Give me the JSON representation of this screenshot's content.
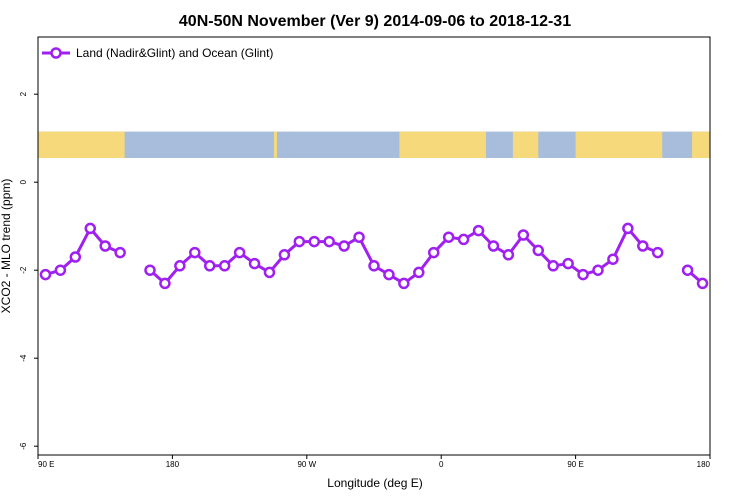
{
  "chart_data": {
    "type": "line",
    "title": "40N-50N November (Ver 9)   2014-09-06 to 2018-12-31",
    "xlabel": "Longitude (deg E)",
    "ylabel": "XCO2 - MLO trend (ppm)",
    "xlim": [
      90,
      450
    ],
    "ylim": [
      -6.2,
      3.3
    ],
    "x_ticks": [
      {
        "value": 90,
        "label": "90 E"
      },
      {
        "value": 180,
        "label": "180"
      },
      {
        "value": 270,
        "label": "90 W"
      },
      {
        "value": 360,
        "label": "0"
      },
      {
        "value": 450,
        "label": "90 E"
      },
      {
        "value": 540,
        "label": "180"
      }
    ],
    "y_ticks": [
      {
        "value": 2,
        "label": "2"
      },
      {
        "value": 0,
        "label": "0"
      },
      {
        "value": -2,
        "label": "-2"
      },
      {
        "value": -4,
        "label": "-4"
      },
      {
        "value": -6,
        "label": "-6"
      }
    ],
    "legend": {
      "position": "top-left",
      "entries": [
        "Land (Nadir&Glint) and Ocean (Glint)"
      ]
    },
    "grid": false,
    "color": "#a020f0",
    "map_strip": {
      "y_top": 1.15,
      "y_bottom": 0.55,
      "land_color": "#f5d97a",
      "ocean_color": "#a8bcdc"
    },
    "series": [
      {
        "name": "Land (Nadir&Glint) and Ocean (Glint)",
        "segments": [
          {
            "x": [
              95,
              105,
              115,
              125,
              135,
              145
            ],
            "y": [
              -2.1,
              -2.0,
              -1.7,
              -1.05,
              -1.45,
              -1.6
            ]
          },
          {
            "x": [
              165,
              175,
              185,
              195,
              205,
              215,
              225,
              235,
              245,
              255,
              265,
              275,
              285,
              295,
              305,
              315,
              325,
              335,
              345,
              355,
              365,
              375,
              385,
              395,
              405,
              415,
              425,
              435,
              445,
              455,
              465,
              475,
              485,
              495,
              505,
              515
            ],
            "y": [
              -2.0,
              -2.3,
              -1.9,
              -1.6,
              -1.9,
              -1.9,
              -1.6,
              -1.85,
              -2.05,
              -1.65,
              -1.35,
              -1.35,
              -1.35,
              -1.45,
              -1.25,
              -1.9,
              -2.1,
              -2.3,
              -2.05,
              -1.6,
              -1.25,
              -1.3,
              -1.1,
              -1.45,
              -1.65,
              -1.2,
              -1.55,
              -1.9,
              -1.85,
              -2.1,
              -2.0,
              -1.75,
              -1.05,
              -1.45,
              -1.6,
              null
            ]
          },
          {
            "x": [
              525,
              535
            ],
            "y": [
              -2.0,
              -2.3
            ]
          }
        ]
      }
    ]
  }
}
